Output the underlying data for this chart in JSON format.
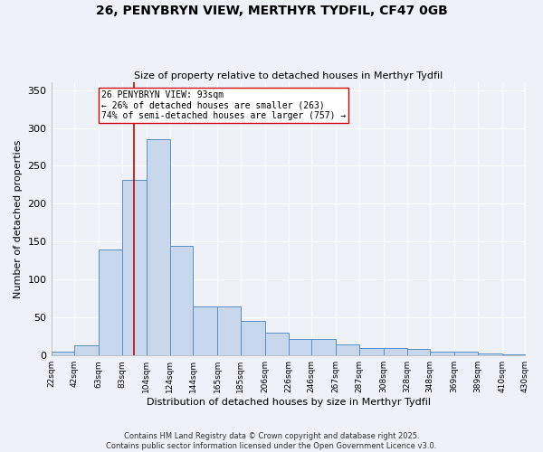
{
  "title_line1": "26, PENYBRYN VIEW, MERTHYR TYDFIL, CF47 0GB",
  "title_line2": "Size of property relative to detached houses in Merthyr Tydfil",
  "xlabel": "Distribution of detached houses by size in Merthyr Tydfil",
  "ylabel": "Number of detached properties",
  "bins": [
    "22sqm",
    "42sqm",
    "63sqm",
    "83sqm",
    "104sqm",
    "124sqm",
    "144sqm",
    "165sqm",
    "185sqm",
    "206sqm",
    "226sqm",
    "246sqm",
    "267sqm",
    "287sqm",
    "308sqm",
    "328sqm",
    "348sqm",
    "369sqm",
    "389sqm",
    "410sqm",
    "430sqm"
  ],
  "bar_heights": [
    5,
    13,
    140,
    232,
    285,
    145,
    65,
    65,
    45,
    30,
    22,
    22,
    15,
    10,
    10,
    8,
    5,
    5,
    3,
    2
  ],
  "bar_color": "#c8d8ec",
  "bar_edge_color": "#5b8ec4",
  "vline_x": 93,
  "vline_color": "#cc0000",
  "annotation_text": "26 PENYBRYN VIEW: 93sqm\n← 26% of detached houses are smaller (263)\n74% of semi-detached houses are larger (757) →",
  "annotation_box_color": "white",
  "annotation_box_edge": "#cc0000",
  "ylim": [
    0,
    360
  ],
  "yticks": [
    0,
    50,
    100,
    150,
    200,
    250,
    300,
    350
  ],
  "background_color": "#eef2f8",
  "grid_color": "white",
  "footer_text": "Contains HM Land Registry data © Crown copyright and database right 2025.\nContains public sector information licensed under the Open Government Licence v3.0.",
  "bin_edges_sqm": [
    22,
    42,
    63,
    83,
    104,
    124,
    144,
    165,
    185,
    206,
    226,
    246,
    267,
    287,
    308,
    328,
    348,
    369,
    389,
    410,
    430
  ],
  "figsize": [
    6.0,
    5.0
  ],
  "dpi": 100
}
